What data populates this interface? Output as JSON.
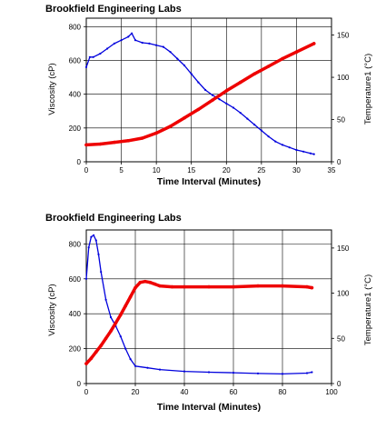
{
  "chart_data": [
    {
      "type": "line",
      "title": "Brookfield Engineering Labs",
      "xlabel": "Time Interval (Minutes)",
      "ylabel": "Viscosity (cP)",
      "y2label": "Temperature1 (°C)",
      "xlim": [
        0,
        35
      ],
      "ylim": [
        0,
        850
      ],
      "y2lim": [
        0,
        170
      ],
      "xticks": [
        "0",
        "5",
        "10",
        "15",
        "20",
        "25",
        "30",
        "35"
      ],
      "yticks": [
        "0",
        "200",
        "400",
        "600",
        "800"
      ],
      "y2ticks": [
        "0",
        "50",
        "100",
        "150"
      ],
      "grid": true,
      "series": [
        {
          "axis": "left",
          "color": "#0000dd",
          "x": [
            0,
            0.5,
            1,
            2,
            3,
            4,
            5,
            6,
            6.5,
            7,
            8,
            9,
            10,
            11,
            12,
            13,
            14,
            15,
            16,
            17,
            18,
            19,
            20,
            21,
            22,
            23,
            24,
            25,
            26,
            27,
            28,
            29,
            30,
            31,
            32,
            32.5
          ],
          "y": [
            560,
            620,
            620,
            640,
            670,
            700,
            720,
            740,
            760,
            720,
            705,
            700,
            690,
            680,
            650,
            610,
            570,
            520,
            470,
            425,
            395,
            370,
            345,
            320,
            290,
            255,
            220,
            185,
            150,
            120,
            100,
            85,
            70,
            60,
            50,
            45
          ]
        },
        {
          "axis": "right",
          "color": "#ee0000",
          "x": [
            0,
            2,
            4,
            6,
            8,
            10,
            12,
            14,
            16,
            18,
            20,
            22,
            24,
            26,
            28,
            30,
            32.5
          ],
          "y": [
            20,
            21,
            23,
            25,
            28,
            34,
            42,
            52,
            62,
            73,
            84,
            94,
            104,
            113,
            122,
            130,
            140
          ]
        }
      ]
    },
    {
      "type": "line",
      "title": "Brookfield Engineering Labs",
      "xlabel": "Time Interval (Minutes)",
      "ylabel": "Viscosity (cP)",
      "y2label": "Temperature1 (°C)",
      "xlim": [
        0,
        100
      ],
      "ylim": [
        0,
        880
      ],
      "y2lim": [
        0,
        170
      ],
      "xticks": [
        "0",
        "20",
        "40",
        "60",
        "80",
        "100"
      ],
      "yticks": [
        "0",
        "200",
        "400",
        "600",
        "800"
      ],
      "y2ticks": [
        "0",
        "50",
        "100",
        "150"
      ],
      "grid": true,
      "series": [
        {
          "axis": "left",
          "color": "#0000dd",
          "x": [
            0,
            1,
            2,
            3,
            4,
            5,
            6,
            8,
            10,
            12,
            14,
            16,
            18,
            20,
            25,
            30,
            40,
            50,
            60,
            70,
            80,
            90,
            92
          ],
          "y": [
            600,
            780,
            840,
            850,
            820,
            740,
            640,
            480,
            380,
            330,
            270,
            200,
            140,
            100,
            90,
            80,
            70,
            65,
            62,
            58,
            55,
            60,
            65
          ]
        },
        {
          "axis": "right",
          "color": "#ee0000",
          "x": [
            0,
            2,
            4,
            6,
            8,
            10,
            12,
            14,
            16,
            18,
            20,
            22,
            24,
            26,
            28,
            30,
            35,
            40,
            50,
            60,
            70,
            80,
            90,
            92
          ],
          "y": [
            22,
            28,
            35,
            42,
            50,
            58,
            67,
            76,
            86,
            96,
            106,
            112,
            113,
            112,
            110,
            108,
            107,
            107,
            107,
            107,
            108,
            108,
            107,
            106
          ]
        }
      ]
    }
  ]
}
